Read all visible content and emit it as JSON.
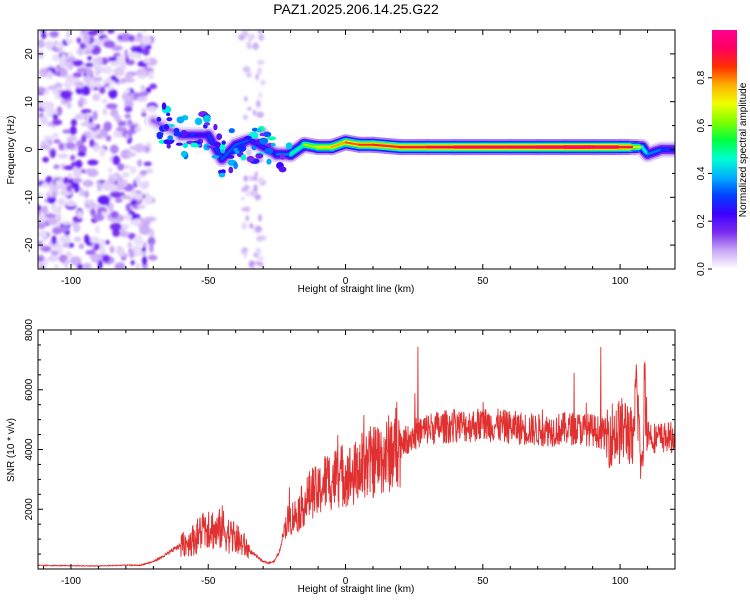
{
  "figure_title": "PAZ1.2025.206.14.25.G22",
  "chart_data": [
    {
      "type": "heatmap",
      "title": "",
      "xlabel": "Height of straight line (km)",
      "ylabel": "Frequency (Hz)",
      "xlim": [
        -112,
        120
      ],
      "ylim": [
        -25,
        25
      ],
      "xticks": [
        -100,
        -50,
        0,
        50,
        100
      ],
      "yticks": [
        -20,
        -10,
        0,
        10,
        20
      ],
      "colorbar": {
        "label": "Normalized spectral amplitude",
        "range": [
          0,
          1
        ],
        "ticks": [
          0.0,
          0.2,
          0.4,
          0.6,
          0.8
        ],
        "tick_labels": [
          "0.0",
          "0.2",
          "0.4",
          "0.6",
          "0.8"
        ],
        "colormap": [
          "#ffffff",
          "#c8a8f5",
          "#7a2cf0",
          "#3d00ff",
          "#0040ff",
          "#00b0ff",
          "#00ffd0",
          "#00ff40",
          "#80ff00",
          "#f0ff00",
          "#ffb000",
          "#ff3000",
          "#ff0060",
          "#ff0090"
        ]
      },
      "ridge": {
        "height_km": [
          -70,
          -60,
          -50,
          -45,
          -40,
          -35,
          -30,
          -25,
          -20,
          -15,
          -10,
          -5,
          0,
          5,
          10,
          20,
          30,
          40,
          50,
          60,
          70,
          80,
          90,
          100,
          105,
          108,
          110,
          115,
          120
        ],
        "frequency_hz": [
          6,
          3,
          3,
          -2,
          1,
          2,
          0.5,
          -1,
          -1,
          1,
          0.5,
          0.5,
          1.5,
          1,
          1,
          0.5,
          0.5,
          0.5,
          0.5,
          0.5,
          0.5,
          0.5,
          0.5,
          0.5,
          0.5,
          0.5,
          -1,
          0,
          0
        ],
        "amplitude": [
          0.05,
          0.2,
          0.3,
          0.3,
          0.35,
          0.3,
          0.25,
          0.3,
          0.4,
          0.6,
          0.7,
          0.75,
          0.8,
          0.85,
          0.85,
          0.9,
          0.9,
          0.95,
          0.95,
          0.95,
          0.95,
          1.0,
          1.0,
          0.95,
          0.85,
          0.5,
          0.4,
          0.3,
          0.3
        ]
      },
      "noise_region_km": [
        -112,
        -70
      ]
    },
    {
      "type": "line",
      "title": "",
      "xlabel": "Height of straight line (km)",
      "ylabel": "SNR (10 * v/v)",
      "xlim": [
        -112,
        120
      ],
      "ylim": [
        0,
        8000
      ],
      "xticks": [
        -100,
        -50,
        0,
        50,
        100
      ],
      "yticks": [
        2000,
        4000,
        6000,
        8000
      ],
      "line_color": "#e03030",
      "series": [
        {
          "x": [
            -112,
            -100,
            -90,
            -80,
            -75,
            -70,
            -65,
            -60,
            -55,
            -52,
            -50,
            -47,
            -45,
            -42,
            -40,
            -37,
            -35,
            -32,
            -30,
            -28,
            -26,
            -24,
            -22,
            -20,
            -18,
            -15,
            -12,
            -10,
            -8,
            -5,
            -2,
            0,
            3,
            5,
            8,
            10,
            15,
            20,
            25,
            30,
            35,
            40,
            45,
            50,
            55,
            60,
            65,
            70,
            75,
            80,
            85,
            90,
            95,
            100,
            103,
            105,
            106,
            107,
            108,
            109,
            110,
            112,
            115,
            120
          ],
          "y": [
            120,
            110,
            100,
            130,
            120,
            250,
            500,
            800,
            1000,
            1300,
            1500,
            1200,
            1400,
            1100,
            1000,
            800,
            600,
            400,
            250,
            200,
            250,
            600,
            1500,
            1700,
            1800,
            2200,
            2600,
            2500,
            2900,
            3000,
            3100,
            3200,
            3100,
            3400,
            3500,
            3600,
            3800,
            4200,
            4500,
            4700,
            4750,
            4800,
            4800,
            4850,
            4800,
            4750,
            4700,
            4650,
            4650,
            4700,
            4700,
            4650,
            4500,
            4600,
            4700,
            4000,
            6500,
            4500,
            3000,
            6500,
            4600,
            4400,
            4400,
            4400
          ]
        }
      ]
    }
  ]
}
